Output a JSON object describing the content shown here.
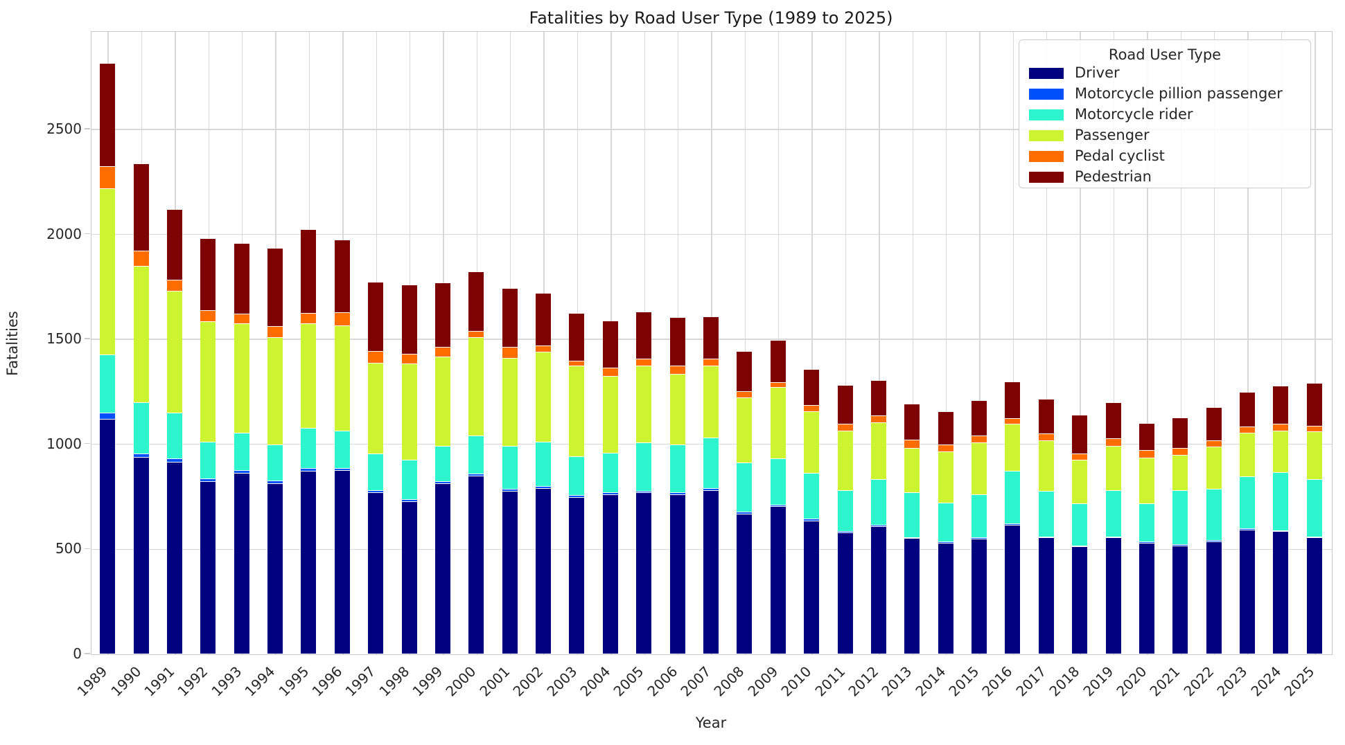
{
  "chart_data": {
    "type": "bar",
    "stacked": true,
    "title": "Fatalities by Road User Type (1989 to 2025)",
    "xlabel": "Year",
    "ylabel": "Fatalities",
    "categories": [
      "1989",
      "1990",
      "1991",
      "1992",
      "1993",
      "1994",
      "1995",
      "1996",
      "1997",
      "1998",
      "1999",
      "2000",
      "2001",
      "2002",
      "2003",
      "2004",
      "2005",
      "2006",
      "2007",
      "2008",
      "2009",
      "2010",
      "2011",
      "2012",
      "2013",
      "2014",
      "2015",
      "2016",
      "2017",
      "2018",
      "2019",
      "2020",
      "2021",
      "2022",
      "2023",
      "2024",
      "2025"
    ],
    "series": [
      {
        "name": "Driver",
        "color": "#010180",
        "values": [
          1118,
          935,
          913,
          820,
          860,
          810,
          869,
          873,
          767,
          725,
          811,
          845,
          773,
          787,
          744,
          758,
          767,
          758,
          777,
          665,
          700,
          633,
          575,
          606,
          548,
          527,
          546,
          613,
          552,
          508,
          552,
          527,
          513,
          533,
          590,
          581,
          552
        ]
      },
      {
        "name": "Motorcycle pillion passenger",
        "color": "#0050FB",
        "values": [
          28,
          18,
          15,
          12,
          12,
          12,
          12,
          10,
          10,
          10,
          10,
          10,
          10,
          10,
          8,
          8,
          8,
          8,
          8,
          8,
          8,
          8,
          6,
          6,
          6,
          6,
          5,
          5,
          5,
          5,
          5,
          5,
          5,
          5,
          5,
          5,
          5
        ]
      },
      {
        "name": "Motorcycle rider",
        "color": "#2DF6CE",
        "values": [
          277,
          242,
          218,
          176,
          180,
          172,
          192,
          179,
          173,
          186,
          167,
          182,
          205,
          211,
          185,
          190,
          229,
          228,
          242,
          237,
          219,
          219,
          196,
          219,
          213,
          186,
          207,
          251,
          216,
          202,
          220,
          183,
          259,
          245,
          249,
          277,
          274
        ]
      },
      {
        "name": "Passenger",
        "color": "#CCF430",
        "values": [
          792,
          651,
          579,
          575,
          519,
          510,
          498,
          500,
          433,
          458,
          425,
          467,
          420,
          429,
          432,
          365,
          365,
          337,
          342,
          310,
          340,
          292,
          285,
          269,
          212,
          241,
          246,
          225,
          240,
          206,
          211,
          216,
          169,
          202,
          208,
          199,
          225
        ]
      },
      {
        "name": "Pedal cyclist",
        "color": "#FF6D01",
        "values": [
          105,
          71,
          55,
          52,
          48,
          56,
          51,
          62,
          57,
          48,
          47,
          31,
          52,
          28,
          23,
          39,
          33,
          38,
          33,
          27,
          25,
          29,
          32,
          33,
          38,
          34,
          33,
          25,
          33,
          29,
          35,
          38,
          33,
          28,
          29,
          32,
          29
        ]
      },
      {
        "name": "Pedestrian",
        "color": "#7D0202",
        "values": [
          490,
          414,
          333,
          339,
          334,
          368,
          395,
          346,
          327,
          328,
          304,
          282,
          277,
          250,
          229,
          223,
          225,
          229,
          201,
          190,
          199,
          172,
          183,
          167,
          170,
          156,
          168,
          174,
          164,
          185,
          172,
          126,
          144,
          158,
          163,
          179,
          202
        ]
      }
    ],
    "totals": [
      2810,
      2331,
      2113,
      1974,
      1953,
      1928,
      2017,
      1970,
      1767,
      1755,
      1764,
      1817,
      1737,
      1715,
      1621,
      1583,
      1627,
      1598,
      1603,
      1437,
      1491,
      1353,
      1277,
      1300,
      1187,
      1150,
      1205,
      1293,
      1210,
      1135,
      1195,
      1095,
      1123,
      1171,
      1244,
      1273,
      1287
    ],
    "yticks": [
      0,
      500,
      1000,
      1500,
      2000,
      2500
    ],
    "ylim": [
      0,
      2965
    ],
    "grid": true,
    "legend": {
      "title": "Road User Type",
      "position": "upper right"
    }
  },
  "style_colors": {
    "gridline": "#d8d8d8",
    "spine": "#c9c9c9",
    "text": "#262626",
    "background": "#ffffff"
  }
}
